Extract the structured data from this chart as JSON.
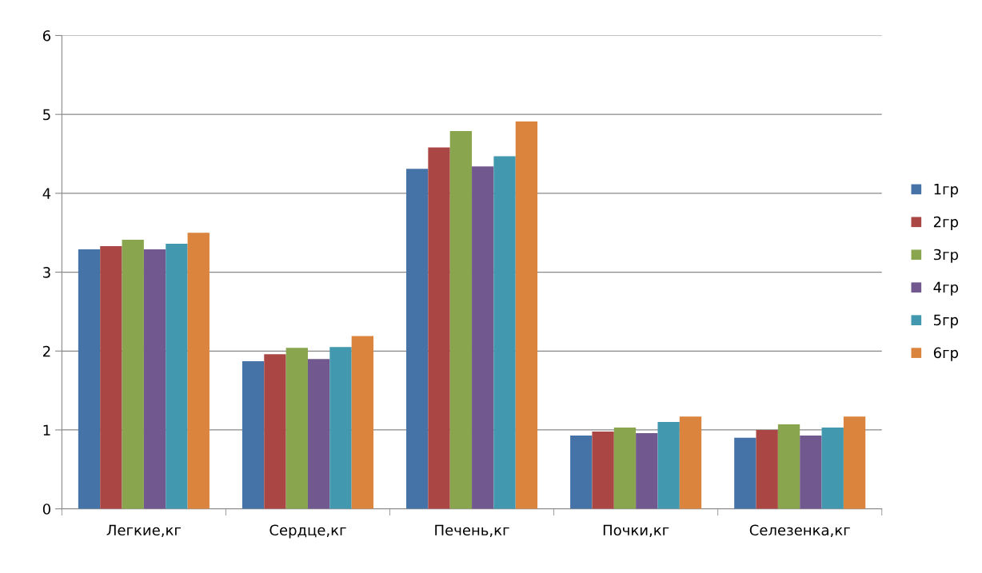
{
  "chart_data": {
    "type": "bar",
    "categories": [
      "Легкие,кг",
      "Сердце,кг",
      "Печень,кг",
      "Почки,кг",
      "Селезенка,кг"
    ],
    "series": [
      {
        "name": "1гр",
        "color": "#4572a7",
        "values": [
          3.29,
          1.87,
          4.31,
          0.93,
          0.9
        ]
      },
      {
        "name": "2гр",
        "color": "#aa4643",
        "values": [
          3.33,
          1.96,
          4.58,
          0.98,
          1.0
        ]
      },
      {
        "name": "3гр",
        "color": "#89a54e",
        "values": [
          3.41,
          2.04,
          4.79,
          1.03,
          1.07
        ]
      },
      {
        "name": "4гр",
        "color": "#71588f",
        "values": [
          3.29,
          1.9,
          4.34,
          0.96,
          0.93
        ]
      },
      {
        "name": "5гр",
        "color": "#4198af",
        "values": [
          3.36,
          2.05,
          4.47,
          1.1,
          1.03
        ]
      },
      {
        "name": "6гр",
        "color": "#db843d",
        "values": [
          3.5,
          2.19,
          4.91,
          1.17,
          1.17
        ]
      }
    ],
    "ylim": [
      0,
      6
    ],
    "yticks": [
      0,
      1,
      2,
      3,
      4,
      5,
      6
    ],
    "grid": "y",
    "legend": "right"
  }
}
